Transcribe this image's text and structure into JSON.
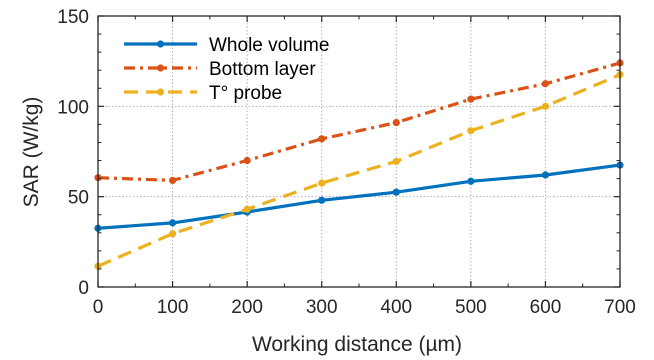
{
  "chart_data": {
    "type": "line",
    "xlabel": "Working distance (µm)",
    "ylabel": "SAR (W/kg)",
    "xlim": [
      0,
      700
    ],
    "ylim": [
      0,
      150
    ],
    "x_ticks": [
      0,
      100,
      200,
      300,
      400,
      500,
      600,
      700
    ],
    "y_ticks": [
      0,
      50,
      100,
      150
    ],
    "grid": true,
    "legend_position": "top-left",
    "x": [
      0,
      100,
      200,
      300,
      400,
      500,
      600,
      700
    ],
    "series": [
      {
        "name": "Whole volume",
        "values": [
          32.5,
          35.5,
          41.5,
          48,
          52.5,
          58.5,
          62,
          67.5
        ],
        "color": "#0072BD",
        "line_style": "solid",
        "marker": "dot"
      },
      {
        "name": "Bottom layer",
        "values": [
          60.5,
          59,
          70,
          82,
          91,
          104,
          112.5,
          124
        ],
        "color": "#D95319",
        "line_style": "dash-dot",
        "marker": "dot"
      },
      {
        "name": "T° probe",
        "values": [
          11.5,
          29.5,
          43,
          57.5,
          69.5,
          86.5,
          100,
          117.5
        ],
        "color": "#EDB120",
        "line_style": "dashed",
        "marker": "dot"
      }
    ]
  }
}
